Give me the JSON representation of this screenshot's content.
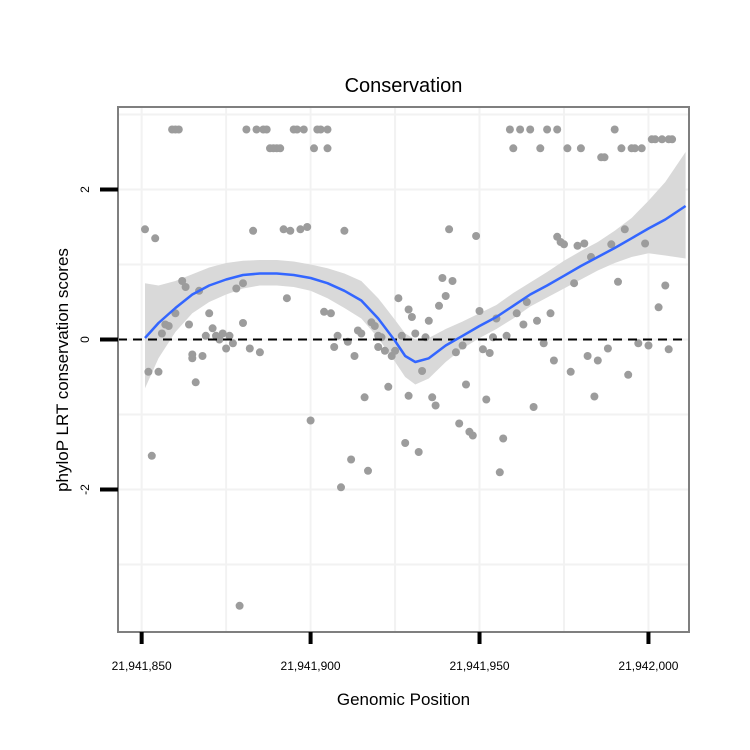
{
  "chart_data": {
    "type": "scatter",
    "title": "Conservation",
    "xlabel": "Genomic Position",
    "ylabel": "phyloP LRT conservation scores",
    "xlim": [
      21941843,
      21942012
    ],
    "ylim": [
      -3.9,
      3.1
    ],
    "x_ticks": [
      21941850,
      21941900,
      21941950,
      21942000
    ],
    "x_tick_labels": [
      "21,941,850",
      "21,941,900",
      "21,941,950",
      "21,942,000"
    ],
    "y_ticks": [
      -2,
      0,
      2
    ],
    "y_tick_labels": [
      "-2",
      "0",
      "2"
    ],
    "grid_major_y": [
      -3,
      -1,
      1,
      3
    ],
    "grid_major_x": [
      21941875,
      21941925,
      21941975
    ],
    "reference_line": {
      "y": 0,
      "style": "dashed"
    },
    "colors": {
      "points": "#9c9c9c",
      "smooth": "#3366ff",
      "band": "#d9d9d9",
      "grid": "#f2f2f2",
      "border": "#7f7f7f"
    },
    "points": [
      [
        21941851,
        1.47
      ],
      [
        21941852,
        -0.43
      ],
      [
        21941853,
        -1.55
      ],
      [
        21941854,
        1.35
      ],
      [
        21941855,
        -0.43
      ],
      [
        21941856,
        0.08
      ],
      [
        21941857,
        0.2
      ],
      [
        21941858,
        0.18
      ],
      [
        21941859,
        2.8
      ],
      [
        21941860,
        2.8
      ],
      [
        21941860,
        0.35
      ],
      [
        21941861,
        2.8
      ],
      [
        21941862,
        0.78
      ],
      [
        21941863,
        0.7
      ],
      [
        21941864,
        0.2
      ],
      [
        21941865,
        -0.25
      ],
      [
        21941865,
        -0.2
      ],
      [
        21941866,
        -0.57
      ],
      [
        21941867,
        0.65
      ],
      [
        21941868,
        -0.22
      ],
      [
        21941869,
        0.05
      ],
      [
        21941870,
        0.35
      ],
      [
        21941871,
        0.15
      ],
      [
        21941872,
        0.05
      ],
      [
        21941873,
        0.0
      ],
      [
        21941874,
        0.08
      ],
      [
        21941875,
        -0.12
      ],
      [
        21941876,
        0.05
      ],
      [
        21941877,
        -0.05
      ],
      [
        21941878,
        0.68
      ],
      [
        21941879,
        -3.55
      ],
      [
        21941880,
        0.75
      ],
      [
        21941880,
        0.22
      ],
      [
        21941881,
        2.8
      ],
      [
        21941882,
        -0.12
      ],
      [
        21941883,
        1.45
      ],
      [
        21941884,
        2.8
      ],
      [
        21941885,
        -0.17
      ],
      [
        21941886,
        2.8
      ],
      [
        21941887,
        2.8
      ],
      [
        21941888,
        2.55
      ],
      [
        21941889,
        2.55
      ],
      [
        21941890,
        2.55
      ],
      [
        21941891,
        2.55
      ],
      [
        21941892,
        1.47
      ],
      [
        21941893,
        0.55
      ],
      [
        21941894,
        1.45
      ],
      [
        21941895,
        2.8
      ],
      [
        21941896,
        2.8
      ],
      [
        21941897,
        1.47
      ],
      [
        21941898,
        2.8
      ],
      [
        21941899,
        1.5
      ],
      [
        21941900,
        -1.08
      ],
      [
        21941901,
        2.55
      ],
      [
        21941902,
        2.8
      ],
      [
        21941903,
        2.8
      ],
      [
        21941904,
        0.37
      ],
      [
        21941905,
        2.8
      ],
      [
        21941905,
        2.55
      ],
      [
        21941906,
        0.35
      ],
      [
        21941907,
        -0.1
      ],
      [
        21941908,
        0.05
      ],
      [
        21941909,
        -1.97
      ],
      [
        21941910,
        1.45
      ],
      [
        21941911,
        -0.03
      ],
      [
        21941912,
        -1.6
      ],
      [
        21941913,
        -0.22
      ],
      [
        21941914,
        0.12
      ],
      [
        21941915,
        0.08
      ],
      [
        21941916,
        -0.77
      ],
      [
        21941917,
        -1.75
      ],
      [
        21941918,
        0.23
      ],
      [
        21941919,
        0.18
      ],
      [
        21941920,
        0.05
      ],
      [
        21941920,
        -0.1
      ],
      [
        21941921,
        0.03
      ],
      [
        21941922,
        -0.15
      ],
      [
        21941923,
        -0.63
      ],
      [
        21941924,
        -0.22
      ],
      [
        21941925,
        -0.15
      ],
      [
        21941926,
        0.55
      ],
      [
        21941927,
        0.05
      ],
      [
        21941928,
        -1.38
      ],
      [
        21941929,
        0.4
      ],
      [
        21941929,
        -0.75
      ],
      [
        21941930,
        0.3
      ],
      [
        21941931,
        0.08
      ],
      [
        21941932,
        -1.5
      ],
      [
        21941933,
        -0.42
      ],
      [
        21941934,
        0.03
      ],
      [
        21941935,
        0.25
      ],
      [
        21941936,
        -0.77
      ],
      [
        21941937,
        -0.88
      ],
      [
        21941938,
        0.45
      ],
      [
        21941939,
        0.82
      ],
      [
        21941940,
        0.58
      ],
      [
        21941941,
        1.47
      ],
      [
        21941942,
        0.78
      ],
      [
        21941943,
        -0.17
      ],
      [
        21941944,
        -1.12
      ],
      [
        21941945,
        -0.08
      ],
      [
        21941946,
        -0.6
      ],
      [
        21941947,
        -1.23
      ],
      [
        21941948,
        -1.28
      ],
      [
        21941949,
        1.38
      ],
      [
        21941950,
        0.38
      ],
      [
        21941951,
        -0.13
      ],
      [
        21941952,
        -0.8
      ],
      [
        21941953,
        -0.18
      ],
      [
        21941954,
        0.03
      ],
      [
        21941955,
        0.28
      ],
      [
        21941956,
        -1.77
      ],
      [
        21941957,
        -1.32
      ],
      [
        21941958,
        0.05
      ],
      [
        21941959,
        2.8
      ],
      [
        21941960,
        2.55
      ],
      [
        21941961,
        0.35
      ],
      [
        21941962,
        2.8
      ],
      [
        21941963,
        0.2
      ],
      [
        21941964,
        0.5
      ],
      [
        21941965,
        2.8
      ],
      [
        21941966,
        -0.9
      ],
      [
        21941967,
        0.25
      ],
      [
        21941968,
        2.55
      ],
      [
        21941969,
        -0.05
      ],
      [
        21941970,
        2.8
      ],
      [
        21941971,
        0.35
      ],
      [
        21941972,
        -0.28
      ],
      [
        21941973,
        2.8
      ],
      [
        21941973,
        1.37
      ],
      [
        21941974,
        1.3
      ],
      [
        21941975,
        1.27
      ],
      [
        21941976,
        2.55
      ],
      [
        21941977,
        -0.43
      ],
      [
        21941978,
        0.75
      ],
      [
        21941979,
        1.25
      ],
      [
        21941980,
        2.55
      ],
      [
        21941981,
        1.28
      ],
      [
        21941982,
        -0.22
      ],
      [
        21941983,
        1.1
      ],
      [
        21941984,
        -0.76
      ],
      [
        21941985,
        -0.28
      ],
      [
        21941986,
        2.43
      ],
      [
        21941987,
        2.43
      ],
      [
        21941988,
        -0.12
      ],
      [
        21941989,
        1.27
      ],
      [
        21941990,
        2.8
      ],
      [
        21941991,
        0.77
      ],
      [
        21941992,
        2.55
      ],
      [
        21941993,
        1.47
      ],
      [
        21941994,
        -0.47
      ],
      [
        21941995,
        2.55
      ],
      [
        21941996,
        2.55
      ],
      [
        21941997,
        -0.05
      ],
      [
        21941998,
        2.55
      ],
      [
        21941999,
        1.28
      ],
      [
        21942000,
        -0.08
      ],
      [
        21942001,
        2.67
      ],
      [
        21942002,
        2.67
      ],
      [
        21942003,
        0.43
      ],
      [
        21942004,
        2.67
      ],
      [
        21942005,
        0.72
      ],
      [
        21942006,
        -0.13
      ],
      [
        21942006,
        2.67
      ],
      [
        21942007,
        2.67
      ]
    ],
    "smooth": {
      "x": [
        21941851,
        21941855,
        21941860,
        21941865,
        21941870,
        21941875,
        21941880,
        21941885,
        21941890,
        21941895,
        21941900,
        21941905,
        21941910,
        21941915,
        21941920,
        21941925,
        21941928,
        21941931,
        21941935,
        21941940,
        21941945,
        21941950,
        21941955,
        21941960,
        21941965,
        21941970,
        21941975,
        21941980,
        21941985,
        21941990,
        21941995,
        21942000,
        21942005,
        21942011
      ],
      "fit": [
        0.02,
        0.22,
        0.42,
        0.6,
        0.72,
        0.8,
        0.86,
        0.88,
        0.88,
        0.86,
        0.82,
        0.75,
        0.65,
        0.52,
        0.28,
        -0.02,
        -0.22,
        -0.3,
        -0.25,
        -0.08,
        0.05,
        0.18,
        0.3,
        0.45,
        0.6,
        0.72,
        0.85,
        0.98,
        1.1,
        1.22,
        1.35,
        1.48,
        1.6,
        1.78
      ],
      "lower": [
        -0.65,
        -0.25,
        0.1,
        0.35,
        0.5,
        0.6,
        0.68,
        0.72,
        0.72,
        0.7,
        0.65,
        0.55,
        0.42,
        0.28,
        0.02,
        -0.3,
        -0.5,
        -0.6,
        -0.52,
        -0.3,
        -0.12,
        0.02,
        0.14,
        0.28,
        0.44,
        0.56,
        0.68,
        0.8,
        0.92,
        1.02,
        1.1,
        1.15,
        1.12,
        1.08
      ],
      "upper": [
        0.75,
        0.72,
        0.78,
        0.87,
        0.96,
        1.02,
        1.05,
        1.06,
        1.06,
        1.04,
        1.0,
        0.95,
        0.88,
        0.78,
        0.55,
        0.26,
        0.08,
        0.0,
        0.02,
        0.14,
        0.24,
        0.35,
        0.46,
        0.62,
        0.76,
        0.9,
        1.05,
        1.18,
        1.3,
        1.45,
        1.62,
        1.85,
        2.1,
        2.5
      ]
    }
  }
}
